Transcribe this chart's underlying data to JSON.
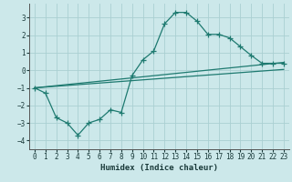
{
  "xlabel": "Humidex (Indice chaleur)",
  "xlim": [
    -0.5,
    23.5
  ],
  "ylim": [
    -4.5,
    3.8
  ],
  "xticks": [
    0,
    1,
    2,
    3,
    4,
    5,
    6,
    7,
    8,
    9,
    10,
    11,
    12,
    13,
    14,
    15,
    16,
    17,
    18,
    19,
    20,
    21,
    22,
    23
  ],
  "yticks": [
    -4,
    -3,
    -2,
    -1,
    0,
    1,
    2,
    3
  ],
  "background_color": "#cce8ea",
  "grid_color": "#aacfd2",
  "line_color": "#1e7a70",
  "line1_x": [
    0,
    1,
    2,
    3,
    4,
    5,
    6,
    7,
    8,
    9,
    10,
    11,
    12,
    13,
    14,
    15,
    16,
    17,
    18,
    19,
    20,
    21,
    22,
    23
  ],
  "line1_y": [
    -1.0,
    -1.3,
    -2.7,
    -3.0,
    -3.7,
    -3.0,
    -2.8,
    -2.25,
    -2.4,
    -0.3,
    0.6,
    1.1,
    2.65,
    3.3,
    3.3,
    2.8,
    2.05,
    2.05,
    1.85,
    1.35,
    0.85,
    0.4,
    0.4,
    0.4
  ],
  "line2_x": [
    0,
    23
  ],
  "line2_y": [
    -1.0,
    0.45
  ],
  "line3_x": [
    0,
    23
  ],
  "line3_y": [
    -1.0,
    0.05
  ],
  "marker": "+",
  "markersize": 4,
  "linewidth": 0.9
}
